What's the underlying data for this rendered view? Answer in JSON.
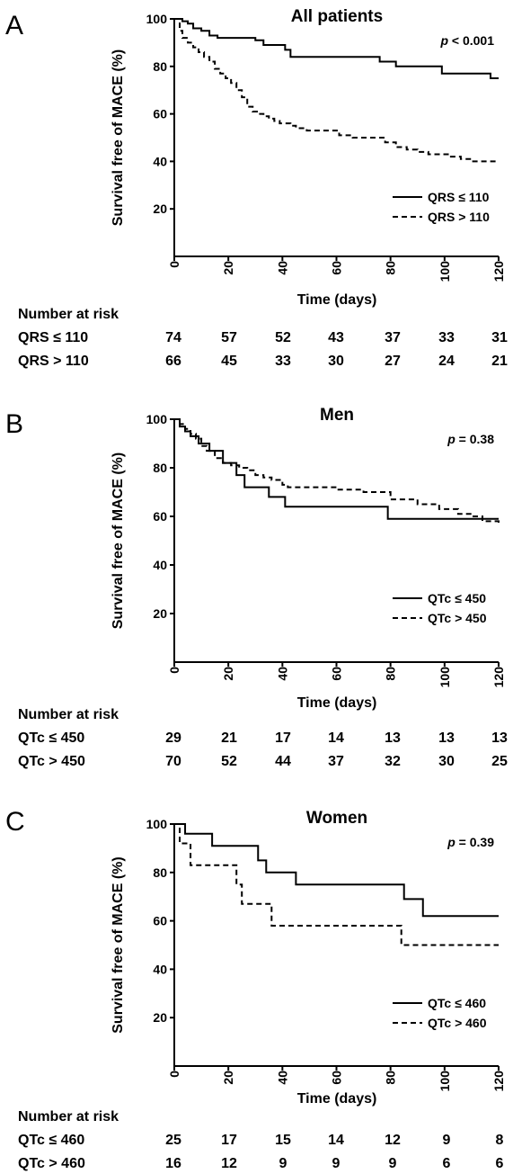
{
  "chart_data": [
    {
      "type": "line",
      "panel": "A",
      "title": "All patients",
      "p_value": {
        "italic": "p",
        "rest": " < 0.001"
      },
      "xlabel": "Time (days)",
      "ylabel": "Survival free of MACE (%)",
      "xlim": [
        0,
        120
      ],
      "ylim": [
        0,
        100
      ],
      "xticks": [
        0,
        20,
        40,
        60,
        80,
        100,
        120
      ],
      "yticks": [
        20,
        40,
        60,
        80,
        100
      ],
      "legend_position": "right",
      "series": [
        {
          "name": "QRS ≤ 110",
          "style": "solid",
          "x": [
            0,
            3,
            5,
            7,
            10,
            13,
            16,
            27,
            30,
            33,
            41,
            43,
            56,
            76,
            82,
            96,
            99,
            114,
            117,
            120
          ],
          "y": [
            100,
            99,
            98,
            96,
            95,
            93,
            92,
            92,
            91,
            89,
            87,
            84,
            84,
            82,
            80,
            80,
            77,
            77,
            75,
            75
          ]
        },
        {
          "name": "QRS > 110",
          "style": "dashed",
          "x": [
            0,
            2,
            3,
            5,
            7,
            9,
            11,
            13,
            15,
            17,
            19,
            21,
            23,
            25,
            27,
            29,
            31,
            33,
            35,
            37,
            39,
            41,
            43,
            45,
            49,
            56,
            61,
            66,
            76,
            78,
            82,
            86,
            90,
            94,
            98,
            102,
            106,
            110,
            114,
            120
          ],
          "y": [
            100,
            95,
            92,
            90,
            88,
            86,
            84,
            82,
            79,
            77,
            75,
            73,
            70,
            67,
            63,
            61,
            60,
            59,
            58,
            57,
            56,
            56,
            55,
            54,
            53,
            53,
            51,
            50,
            50,
            48,
            46,
            45,
            44,
            43,
            43,
            42,
            41,
            40,
            40,
            40
          ]
        }
      ],
      "risk_table": {
        "header": "Number at risk",
        "rows": [
          {
            "label": "QRS ≤ 110",
            "values": [
              74,
              57,
              52,
              43,
              37,
              33,
              31
            ]
          },
          {
            "label": "QRS > 110",
            "values": [
              66,
              45,
              33,
              30,
              27,
              24,
              21
            ]
          }
        ]
      }
    },
    {
      "type": "line",
      "panel": "B",
      "title": "Men",
      "p_value": {
        "italic": "p",
        "rest": " = 0.38"
      },
      "xlabel": "Time (days)",
      "ylabel": "Survival free of MACE (%)",
      "xlim": [
        0,
        120
      ],
      "ylim": [
        0,
        100
      ],
      "xticks": [
        0,
        20,
        40,
        60,
        80,
        100,
        120
      ],
      "yticks": [
        20,
        40,
        60,
        80,
        100
      ],
      "legend_position": "right",
      "series": [
        {
          "name": "QTc ≤ 450",
          "style": "solid",
          "x": [
            0,
            2,
            4,
            6,
            9,
            13,
            18,
            23,
            26,
            35,
            41,
            62,
            79,
            120
          ],
          "y": [
            100,
            97,
            95,
            93,
            90,
            87,
            82,
            77,
            72,
            68,
            64,
            64,
            59,
            59
          ]
        },
        {
          "name": "QTc > 450",
          "style": "dashed",
          "x": [
            0,
            2,
            4,
            6,
            8,
            10,
            12,
            15,
            18,
            21,
            24,
            27,
            30,
            33,
            36,
            40,
            42,
            50,
            60,
            70,
            80,
            90,
            98,
            105,
            110,
            114,
            120
          ],
          "y": [
            100,
            98,
            96,
            94,
            92,
            89,
            87,
            84,
            82,
            81,
            80,
            79,
            77,
            76,
            75,
            73,
            72,
            72,
            71,
            70,
            67,
            65,
            63,
            61,
            60,
            58,
            57
          ]
        }
      ],
      "risk_table": {
        "header": "Number at risk",
        "rows": [
          {
            "label": "QTc ≤ 450",
            "values": [
              29,
              21,
              17,
              14,
              13,
              13,
              13
            ]
          },
          {
            "label": "QTc > 450",
            "values": [
              70,
              52,
              44,
              37,
              32,
              30,
              25
            ]
          }
        ]
      }
    },
    {
      "type": "line",
      "panel": "C",
      "title": "Women",
      "p_value": {
        "italic": "p",
        "rest": " = 0.39"
      },
      "xlabel": "Time (days)",
      "ylabel": "Survival free of MACE (%)",
      "xlim": [
        0,
        120
      ],
      "ylim": [
        0,
        100
      ],
      "xticks": [
        0,
        20,
        40,
        60,
        80,
        100,
        120
      ],
      "yticks": [
        20,
        40,
        60,
        80,
        100
      ],
      "legend_position": "right",
      "series": [
        {
          "name": "QTc ≤ 460",
          "style": "solid",
          "x": [
            0,
            4,
            14,
            31,
            34,
            45,
            85,
            92,
            120
          ],
          "y": [
            100,
            96,
            91,
            85,
            80,
            75,
            69,
            62,
            62
          ]
        },
        {
          "name": "QTc > 460",
          "style": "dashed",
          "x": [
            0,
            2,
            6,
            23,
            25,
            36,
            84,
            120
          ],
          "y": [
            100,
            92,
            83,
            75,
            67,
            58,
            50,
            50
          ]
        }
      ],
      "risk_table": {
        "header": "Number at risk",
        "rows": [
          {
            "label": "QTc ≤ 460",
            "values": [
              25,
              17,
              15,
              14,
              12,
              9,
              8
            ]
          },
          {
            "label": "QTc > 460",
            "values": [
              16,
              12,
              9,
              9,
              9,
              6,
              6
            ]
          }
        ]
      }
    }
  ]
}
